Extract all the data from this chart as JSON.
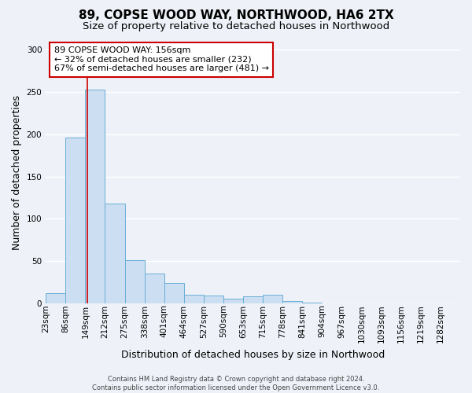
{
  "title": "89, COPSE WOOD WAY, NORTHWOOD, HA6 2TX",
  "subtitle": "Size of property relative to detached houses in Northwood",
  "xlabel": "Distribution of detached houses by size in Northwood",
  "ylabel": "Number of detached properties",
  "bins": [
    "23sqm",
    "86sqm",
    "149sqm",
    "212sqm",
    "275sqm",
    "338sqm",
    "401sqm",
    "464sqm",
    "527sqm",
    "590sqm",
    "653sqm",
    "715sqm",
    "778sqm",
    "841sqm",
    "904sqm",
    "967sqm",
    "1030sqm",
    "1093sqm",
    "1156sqm",
    "1219sqm",
    "1282sqm"
  ],
  "bin_edges": [
    23,
    86,
    149,
    212,
    275,
    338,
    401,
    464,
    527,
    590,
    653,
    715,
    778,
    841,
    904,
    967,
    1030,
    1093,
    1156,
    1219,
    1282
  ],
  "bar_heights": [
    12,
    196,
    253,
    118,
    51,
    35,
    24,
    10,
    9,
    6,
    8,
    10,
    3,
    1,
    0,
    0,
    0,
    0,
    0,
    0
  ],
  "bar_color": "#ccdff2",
  "bar_edge_color": "#6aaed6",
  "vline_x": 156,
  "vline_color": "#cc0000",
  "ylim": [
    0,
    310
  ],
  "yticks": [
    0,
    50,
    100,
    150,
    200,
    250,
    300
  ],
  "annotation_title": "89 COPSE WOOD WAY: 156sqm",
  "annotation_line1": "← 32% of detached houses are smaller (232)",
  "annotation_line2": "67% of semi-detached houses are larger (481) →",
  "annotation_box_color": "#ffffff",
  "annotation_box_edge": "#cc0000",
  "footer1": "Contains HM Land Registry data © Crown copyright and database right 2024.",
  "footer2": "Contains public sector information licensed under the Open Government Licence v3.0.",
  "bg_color": "#eef2f8",
  "grid_color": "#ffffff",
  "title_fontsize": 11,
  "subtitle_fontsize": 9.5,
  "label_fontsize": 9,
  "tick_fontsize": 7.5,
  "footer_fontsize": 6,
  "ann_fontsize": 8
}
